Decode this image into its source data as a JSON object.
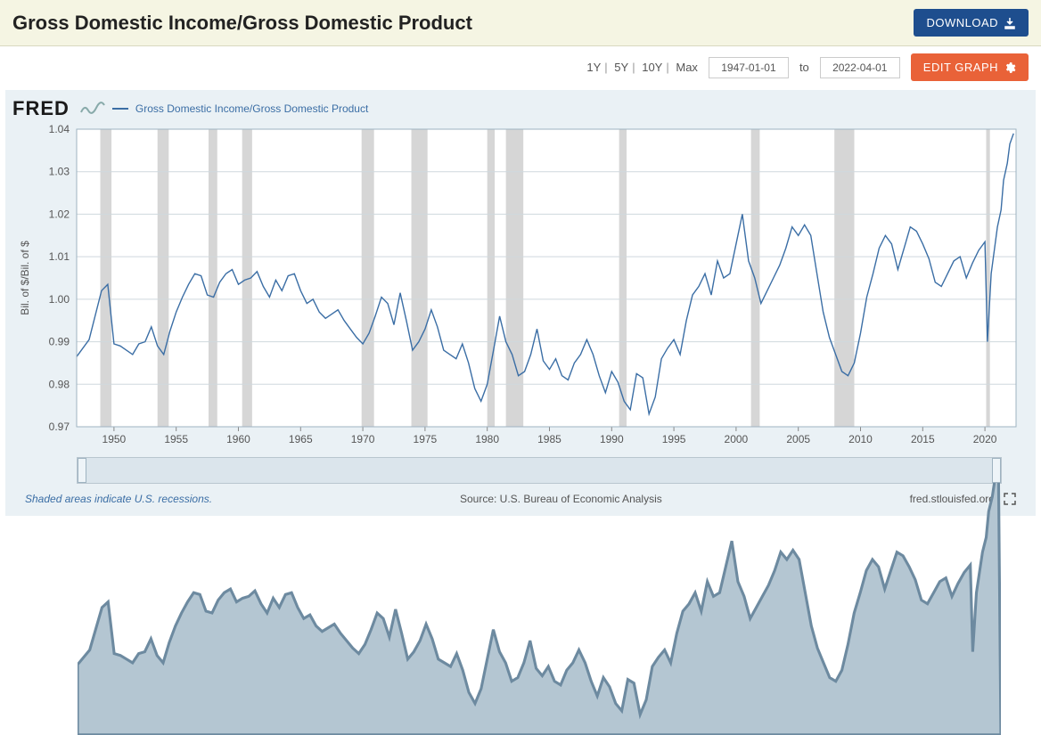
{
  "header": {
    "title": "Gross Domestic Income/Gross Domestic Product",
    "download_label": "DOWNLOAD"
  },
  "controls": {
    "ranges": [
      "1Y",
      "5Y",
      "10Y",
      "Max"
    ],
    "date_from": "1947-01-01",
    "date_to": "2022-04-01",
    "to_label": "to",
    "edit_label": "EDIT GRAPH"
  },
  "logo_text": "FRED",
  "legend": {
    "series_label": "Gross Domestic Income/Gross Domestic Product",
    "series_color": "#3b6ea5"
  },
  "chart": {
    "type": "line",
    "background_color": "#eaf1f5",
    "plot_background": "#ffffff",
    "grid_color": "#cfd8dd",
    "line_color": "#3b6ea5",
    "line_width": 1.4,
    "recession_color": "#d6d6d6",
    "y_axis_label": "Bil. of $/Bil. of $",
    "ylim": [
      0.97,
      1.04
    ],
    "yticks": [
      0.97,
      0.98,
      0.99,
      1.0,
      1.01,
      1.02,
      1.03,
      1.04
    ],
    "xlim": [
      1947,
      2022.5
    ],
    "xticks": [
      1950,
      1955,
      1960,
      1965,
      1970,
      1975,
      1980,
      1985,
      1990,
      1995,
      2000,
      2005,
      2010,
      2015,
      2020
    ],
    "recessions": [
      [
        1948.9,
        1949.8
      ],
      [
        1953.5,
        1954.4
      ],
      [
        1957.6,
        1958.3
      ],
      [
        1960.3,
        1961.1
      ],
      [
        1969.9,
        1970.9
      ],
      [
        1973.9,
        1975.2
      ],
      [
        1980.0,
        1980.6
      ],
      [
        1981.5,
        1982.9
      ],
      [
        1990.6,
        1991.2
      ],
      [
        2001.2,
        2001.9
      ],
      [
        2007.9,
        2009.5
      ],
      [
        2020.1,
        2020.4
      ]
    ],
    "data": [
      [
        1947.0,
        0.9865
      ],
      [
        1948.0,
        0.9905
      ],
      [
        1949.0,
        1.002
      ],
      [
        1949.5,
        1.0035
      ],
      [
        1950.0,
        0.9895
      ],
      [
        1950.5,
        0.989
      ],
      [
        1951.0,
        0.988
      ],
      [
        1951.5,
        0.987
      ],
      [
        1952.0,
        0.9895
      ],
      [
        1952.5,
        0.99
      ],
      [
        1953.0,
        0.9935
      ],
      [
        1953.5,
        0.989
      ],
      [
        1954.0,
        0.987
      ],
      [
        1954.5,
        0.9925
      ],
      [
        1955.0,
        0.997
      ],
      [
        1955.5,
        1.0005
      ],
      [
        1956.0,
        1.0035
      ],
      [
        1956.5,
        1.006
      ],
      [
        1957.0,
        1.0055
      ],
      [
        1957.5,
        1.001
      ],
      [
        1958.0,
        1.0005
      ],
      [
        1958.5,
        1.004
      ],
      [
        1959.0,
        1.006
      ],
      [
        1959.5,
        1.007
      ],
      [
        1960.0,
        1.0035
      ],
      [
        1960.5,
        1.0045
      ],
      [
        1961.0,
        1.005
      ],
      [
        1961.5,
        1.0065
      ],
      [
        1962.0,
        1.003
      ],
      [
        1962.5,
        1.0005
      ],
      [
        1963.0,
        1.0045
      ],
      [
        1963.5,
        1.002
      ],
      [
        1964.0,
        1.0055
      ],
      [
        1964.5,
        1.006
      ],
      [
        1965.0,
        1.002
      ],
      [
        1965.5,
        0.999
      ],
      [
        1966.0,
        1.0
      ],
      [
        1966.5,
        0.997
      ],
      [
        1967.0,
        0.9955
      ],
      [
        1967.5,
        0.9965
      ],
      [
        1968.0,
        0.9975
      ],
      [
        1968.5,
        0.995
      ],
      [
        1969.0,
        0.993
      ],
      [
        1969.5,
        0.991
      ],
      [
        1970.0,
        0.9895
      ],
      [
        1970.5,
        0.992
      ],
      [
        1971.0,
        0.996
      ],
      [
        1971.5,
        1.0005
      ],
      [
        1972.0,
        0.999
      ],
      [
        1972.5,
        0.994
      ],
      [
        1973.0,
        1.0015
      ],
      [
        1973.5,
        0.995
      ],
      [
        1974.0,
        0.988
      ],
      [
        1974.5,
        0.99
      ],
      [
        1975.0,
        0.993
      ],
      [
        1975.5,
        0.9975
      ],
      [
        1976.0,
        0.9935
      ],
      [
        1976.5,
        0.988
      ],
      [
        1977.0,
        0.987
      ],
      [
        1977.5,
        0.986
      ],
      [
        1978.0,
        0.9895
      ],
      [
        1978.5,
        0.985
      ],
      [
        1979.0,
        0.979
      ],
      [
        1979.5,
        0.976
      ],
      [
        1980.0,
        0.98
      ],
      [
        1980.5,
        0.988
      ],
      [
        1981.0,
        0.996
      ],
      [
        1981.5,
        0.99
      ],
      [
        1982.0,
        0.987
      ],
      [
        1982.5,
        0.982
      ],
      [
        1983.0,
        0.983
      ],
      [
        1983.5,
        0.987
      ],
      [
        1984.0,
        0.993
      ],
      [
        1984.5,
        0.9855
      ],
      [
        1985.0,
        0.9835
      ],
      [
        1985.5,
        0.986
      ],
      [
        1986.0,
        0.982
      ],
      [
        1986.5,
        0.981
      ],
      [
        1987.0,
        0.985
      ],
      [
        1987.5,
        0.987
      ],
      [
        1988.0,
        0.9905
      ],
      [
        1988.5,
        0.987
      ],
      [
        1989.0,
        0.982
      ],
      [
        1989.5,
        0.978
      ],
      [
        1990.0,
        0.983
      ],
      [
        1990.5,
        0.9805
      ],
      [
        1991.0,
        0.976
      ],
      [
        1991.5,
        0.974
      ],
      [
        1992.0,
        0.9825
      ],
      [
        1992.5,
        0.9815
      ],
      [
        1993.0,
        0.973
      ],
      [
        1993.5,
        0.977
      ],
      [
        1994.0,
        0.986
      ],
      [
        1994.5,
        0.9885
      ],
      [
        1995.0,
        0.9905
      ],
      [
        1995.5,
        0.987
      ],
      [
        1996.0,
        0.995
      ],
      [
        1996.5,
        1.001
      ],
      [
        1997.0,
        1.003
      ],
      [
        1997.5,
        1.006
      ],
      [
        1998.0,
        1.001
      ],
      [
        1998.5,
        1.009
      ],
      [
        1999.0,
        1.005
      ],
      [
        1999.5,
        1.006
      ],
      [
        2000.0,
        1.013
      ],
      [
        2000.5,
        1.02
      ],
      [
        2001.0,
        1.009
      ],
      [
        2001.5,
        1.005
      ],
      [
        2002.0,
        0.999
      ],
      [
        2002.5,
        1.002
      ],
      [
        2003.0,
        1.005
      ],
      [
        2003.5,
        1.008
      ],
      [
        2004.0,
        1.012
      ],
      [
        2004.5,
        1.017
      ],
      [
        2005.0,
        1.015
      ],
      [
        2005.5,
        1.0175
      ],
      [
        2006.0,
        1.015
      ],
      [
        2006.5,
        1.006
      ],
      [
        2007.0,
        0.997
      ],
      [
        2007.5,
        0.991
      ],
      [
        2008.0,
        0.987
      ],
      [
        2008.5,
        0.983
      ],
      [
        2009.0,
        0.982
      ],
      [
        2009.5,
        0.985
      ],
      [
        2010.0,
        0.992
      ],
      [
        2010.5,
        1.0005
      ],
      [
        2011.0,
        1.006
      ],
      [
        2011.5,
        1.012
      ],
      [
        2012.0,
        1.015
      ],
      [
        2012.5,
        1.013
      ],
      [
        2013.0,
        1.007
      ],
      [
        2013.5,
        1.012
      ],
      [
        2014.0,
        1.017
      ],
      [
        2014.5,
        1.016
      ],
      [
        2015.0,
        1.013
      ],
      [
        2015.5,
        1.0095
      ],
      [
        2016.0,
        1.004
      ],
      [
        2016.5,
        1.003
      ],
      [
        2017.0,
        1.006
      ],
      [
        2017.5,
        1.009
      ],
      [
        2018.0,
        1.01
      ],
      [
        2018.5,
        1.005
      ],
      [
        2019.0,
        1.0085
      ],
      [
        2019.5,
        1.0115
      ],
      [
        2020.0,
        1.0135
      ],
      [
        2020.2,
        0.99
      ],
      [
        2020.5,
        1.006
      ],
      [
        2021.0,
        1.017
      ],
      [
        2021.3,
        1.021
      ],
      [
        2021.5,
        1.028
      ],
      [
        2021.8,
        1.032
      ],
      [
        2022.0,
        1.0365
      ],
      [
        2022.3,
        1.039
      ]
    ]
  },
  "footer": {
    "recession_note": "Shaded areas indicate U.S. recessions.",
    "source_text": "Source: U.S. Bureau of Economic Analysis",
    "site_text": "fred.stlouisfed.org"
  }
}
